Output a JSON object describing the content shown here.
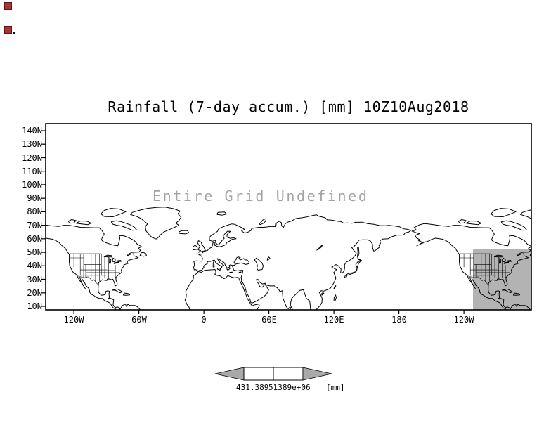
{
  "title": "Rainfall (7-day accum.) [mm] 10Z10Aug2018",
  "map": {
    "overlay_message": "Entire Grid Undefined",
    "coastline_color": "#000000",
    "overlay_text_color": "#a3a3a3",
    "shaded_region_color": "#b3b3b3"
  },
  "axes": {
    "lat_ticks": [
      "140N",
      "130N",
      "120N",
      "110N",
      "100N",
      "90N",
      "80N",
      "70N",
      "60N",
      "50N",
      "40N",
      "30N",
      "20N",
      "10N"
    ],
    "lon_ticks": [
      "120W",
      "60W",
      "0",
      "60E",
      "120E",
      "180",
      "120W"
    ]
  },
  "colorbar": {
    "left_label": "431.389",
    "right_label": "51389e+06",
    "unit_label": "[mm]",
    "arrow_color": "#a9a9a9",
    "segment_fill": "#ffffff"
  }
}
